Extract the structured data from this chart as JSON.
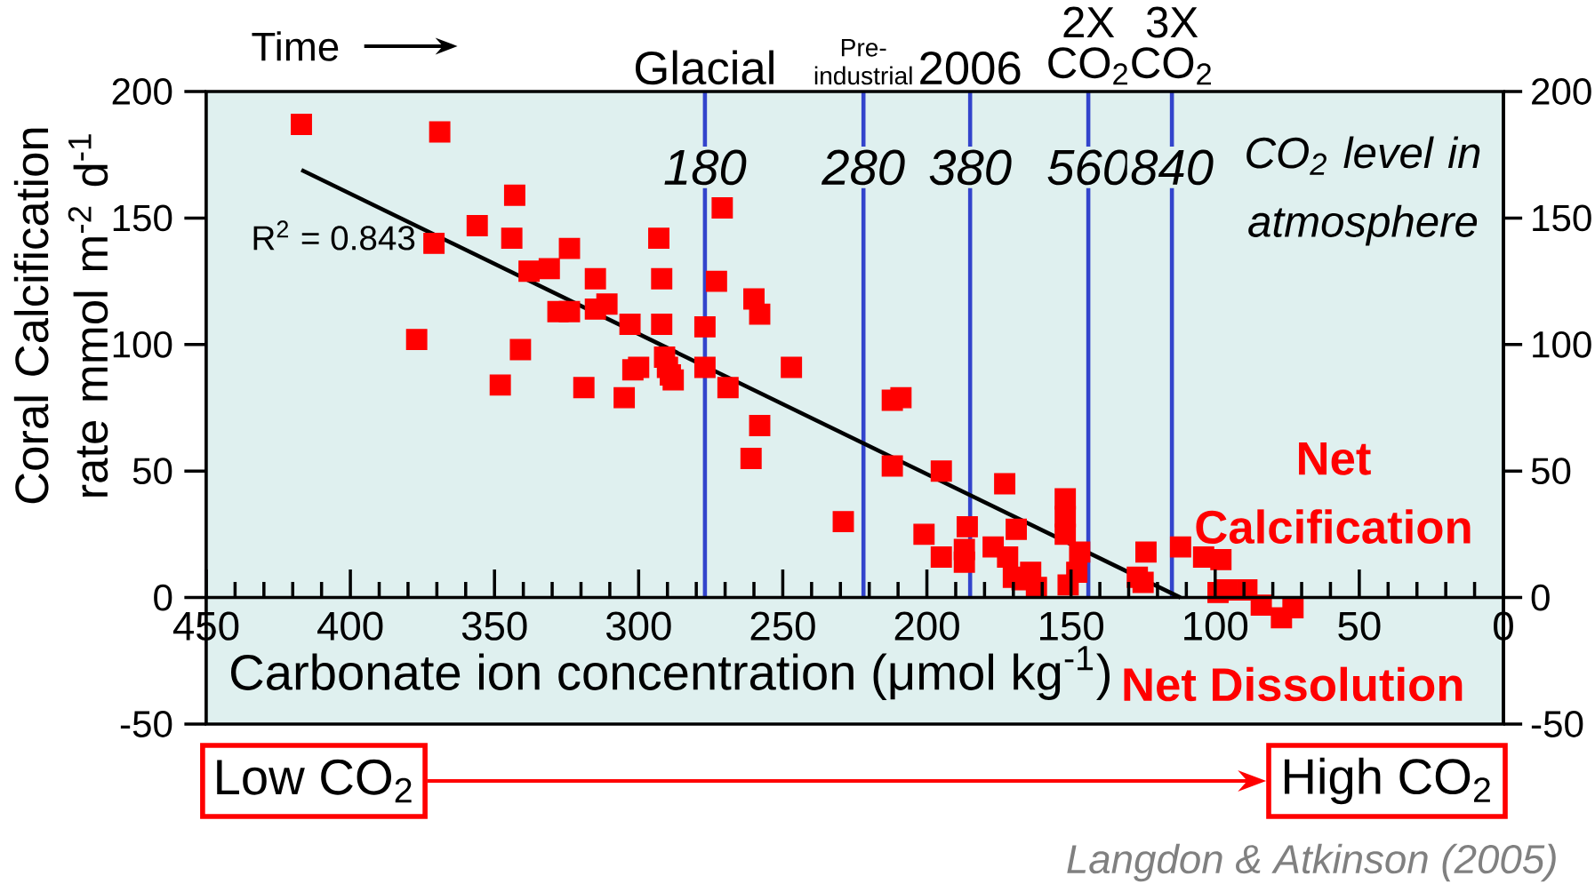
{
  "chart_data": {
    "type": "scatter",
    "xlabel": "Carbonate ion concentration (μmol kg$^{-1}$)",
    "ylabel": "Coral Calcification rate mmol m$^{-2}$ d$^{-1}$",
    "xlim": [
      450,
      0
    ],
    "xticks": [
      450,
      400,
      350,
      300,
      250,
      200,
      150,
      100,
      50,
      0
    ],
    "ylim": [
      -50,
      200
    ],
    "yticks": [
      -50,
      0,
      50,
      100,
      150,
      200
    ],
    "y2lim": [
      -50,
      200
    ],
    "y2ticks": [
      -50,
      0,
      50,
      100,
      150,
      200
    ],
    "marker": "square",
    "series": [
      {
        "color": "#ff0000",
        "x": [
          417,
          369,
          343,
          356,
          371,
          344,
          324,
          338,
          331,
          315,
          293,
          292,
          271,
          273,
          260,
          258,
          328,
          324,
          315,
          311,
          303,
          292,
          277,
          377,
          341,
          348,
          319,
          305,
          302,
          300,
          291,
          290,
          289,
          288,
          277,
          269,
          247,
          258,
          261,
          212,
          209,
          212,
          229,
          195,
          201,
          195,
          186,
          187,
          187,
          177,
          173,
          169,
          172,
          170,
          164,
          167,
          162,
          152,
          152,
          152,
          151,
          147,
          148,
          127,
          125,
          124,
          112,
          104,
          98,
          99,
          96,
          89,
          84,
          77,
          73
        ],
        "values": [
          187,
          184,
          159,
          147,
          140,
          142,
          138,
          129,
          130,
          126,
          142,
          126,
          154,
          125,
          118,
          112,
          113,
          113,
          114,
          116,
          108,
          108,
          107,
          102,
          98,
          84,
          83,
          79,
          90,
          91,
          95,
          91,
          88,
          86,
          91,
          83,
          91,
          68,
          55,
          78,
          79,
          52,
          30,
          50,
          25,
          16,
          28,
          19,
          14,
          20,
          45,
          27,
          16,
          8,
          10,
          7,
          4,
          39,
          32,
          25,
          5,
          18,
          10,
          8,
          6,
          18,
          20,
          16,
          15,
          2,
          3,
          3,
          -3,
          -8,
          -4
        ]
      },
      {
        "type": "line",
        "color": "#000000",
        "marker": "none",
        "x": [
          417,
          112
        ],
        "values": [
          169,
          0
        ]
      }
    ],
    "ref_lines": [
      {
        "axis": "x",
        "value": 277,
        "color": "#3344cc"
      },
      {
        "axis": "x",
        "value": 222,
        "color": "#3344cc"
      },
      {
        "axis": "x",
        "value": 185,
        "color": "#3344cc"
      },
      {
        "axis": "x",
        "value": 144,
        "color": "#3344cc"
      },
      {
        "axis": "x",
        "value": 115,
        "color": "#3344cc"
      }
    ],
    "annotations": [
      {
        "text": "Glacial",
        "x": 277,
        "y": 200
      },
      {
        "text": "Pre-industrial",
        "x": 222,
        "y": 200
      },
      {
        "text": "2006",
        "x": 185,
        "y": 200
      },
      {
        "text": "2X CO$_{2}$",
        "x": 144,
        "y": 200
      },
      {
        "text": "3X CO$_{2}$",
        "x": 115,
        "y": 200
      },
      {
        "text": "180",
        "x": 277,
        "y": 170
      },
      {
        "text": "280",
        "x": 222,
        "y": 170
      },
      {
        "text": "380",
        "x": 185,
        "y": 170
      },
      {
        "text": "560",
        "x": 144,
        "y": 170
      },
      {
        "text": "840",
        "x": 115,
        "y": 170
      },
      "Time",
      "R$^{2}$ = 0.843",
      "CO$_{2}$ level in atmosphere",
      "Net Calcification",
      "Net Dissolution",
      "Low CO$_{2}$",
      "High CO$_{2}$",
      "Langdon & Atkinson (2005)"
    ]
  }
}
